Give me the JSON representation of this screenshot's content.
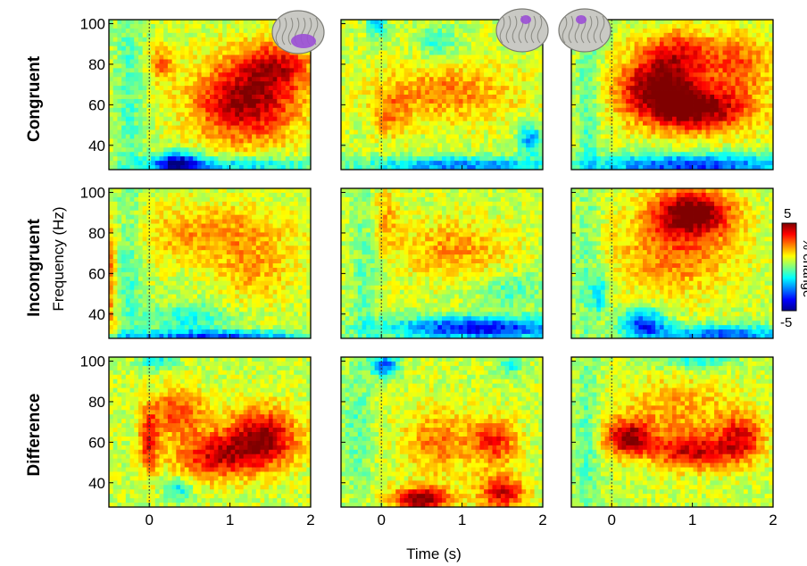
{
  "chart_data": {
    "type": "heatmap",
    "title": "",
    "xlabel": "Time (s)",
    "ylabel": "Frequency (Hz)",
    "xlim": [
      -0.5,
      2.0
    ],
    "ylim": [
      28,
      102
    ],
    "x_ticks": [
      "0",
      "1",
      "2"
    ],
    "y_ticks": [
      "40",
      "60",
      "80",
      "100"
    ],
    "rows": [
      "Congruent",
      "Incongruent",
      "Difference"
    ],
    "columns": 3,
    "brain_icons": [
      "brain-lateral-highlight",
      "brain-dorsal-highlight",
      "brain-frontal-highlight"
    ],
    "colorbar": {
      "label": "% change",
      "min_label": "-5",
      "max_label": "5",
      "range": [
        -5,
        5
      ],
      "colormap": "jet"
    },
    "panels": [
      {
        "row": "Congruent",
        "col": 1,
        "blobs": [
          {
            "t": 1.2,
            "f": 62,
            "st": 0.45,
            "sf": 14,
            "a": 4.2
          },
          {
            "t": 1.6,
            "f": 80,
            "st": 0.3,
            "sf": 8,
            "a": 2.5
          },
          {
            "t": 0.15,
            "f": 80,
            "st": 0.1,
            "sf": 6,
            "a": 2.0
          },
          {
            "t": 0.35,
            "f": 31,
            "st": 0.2,
            "sf": 4,
            "a": -4.5
          },
          {
            "t": 1.0,
            "f": 30,
            "st": 0.8,
            "sf": 3,
            "a": -2.5
          },
          {
            "t": -0.25,
            "f": 65,
            "st": 0.12,
            "sf": 40,
            "a": -1.2
          }
        ]
      },
      {
        "row": "Congruent",
        "col": 2,
        "blobs": [
          {
            "t": 0.8,
            "f": 66,
            "st": 0.6,
            "sf": 10,
            "a": 1.8
          },
          {
            "t": 0.1,
            "f": 55,
            "st": 0.15,
            "sf": 8,
            "a": 1.5
          },
          {
            "t": 1.0,
            "f": 30,
            "st": 0.9,
            "sf": 3,
            "a": -3.2
          },
          {
            "t": 1.85,
            "f": 43,
            "st": 0.1,
            "sf": 5,
            "a": -3.0
          },
          {
            "t": 0.7,
            "f": 90,
            "st": 0.15,
            "sf": 6,
            "a": -1.5
          },
          {
            "t": -0.05,
            "f": 100,
            "st": 0.08,
            "sf": 4,
            "a": -2.5
          }
        ]
      },
      {
        "row": "Congruent",
        "col": 3,
        "blobs": [
          {
            "t": 1.0,
            "f": 58,
            "st": 0.5,
            "sf": 8,
            "a": 4.8
          },
          {
            "t": 0.55,
            "f": 70,
            "st": 0.35,
            "sf": 8,
            "a": 3.5
          },
          {
            "t": 0.8,
            "f": 85,
            "st": 0.35,
            "sf": 8,
            "a": 3.0
          },
          {
            "t": 1.6,
            "f": 80,
            "st": 0.3,
            "sf": 10,
            "a": 2.0
          },
          {
            "t": 1.0,
            "f": 30,
            "st": 0.9,
            "sf": 4,
            "a": -4.0
          },
          {
            "t": -0.3,
            "f": 60,
            "st": 0.1,
            "sf": 40,
            "a": -1.2
          }
        ]
      },
      {
        "row": "Incongruent",
        "col": 1,
        "blobs": [
          {
            "t": 0.8,
            "f": 80,
            "st": 0.7,
            "sf": 10,
            "a": 1.6
          },
          {
            "t": 1.3,
            "f": 60,
            "st": 0.35,
            "sf": 10,
            "a": 1.2
          },
          {
            "t": 0.5,
            "f": 38,
            "st": 0.35,
            "sf": 5,
            "a": -1.8
          },
          {
            "t": 0.8,
            "f": 29,
            "st": 0.9,
            "sf": 2,
            "a": -3.5
          },
          {
            "t": -0.25,
            "f": 65,
            "st": 0.12,
            "sf": 40,
            "a": -1.2
          },
          {
            "t": -0.48,
            "f": 55,
            "st": 0.05,
            "sf": 20,
            "a": 2.0
          }
        ]
      },
      {
        "row": "Incongruent",
        "col": 2,
        "blobs": [
          {
            "t": 0.9,
            "f": 72,
            "st": 0.5,
            "sf": 10,
            "a": 1.5
          },
          {
            "t": 0.05,
            "f": 88,
            "st": 0.12,
            "sf": 10,
            "a": 1.4
          },
          {
            "t": 1.2,
            "f": 33,
            "st": 0.8,
            "sf": 4,
            "a": -4.5
          },
          {
            "t": 1.6,
            "f": 52,
            "st": 0.3,
            "sf": 6,
            "a": -1.2
          },
          {
            "t": -0.2,
            "f": 65,
            "st": 0.12,
            "sf": 40,
            "a": -1.0
          }
        ]
      },
      {
        "row": "Incongruent",
        "col": 3,
        "blobs": [
          {
            "t": 1.0,
            "f": 90,
            "st": 0.35,
            "sf": 8,
            "a": 4.5
          },
          {
            "t": 0.8,
            "f": 70,
            "st": 0.5,
            "sf": 14,
            "a": 2.0
          },
          {
            "t": 0.4,
            "f": 35,
            "st": 0.2,
            "sf": 5,
            "a": -4.0
          },
          {
            "t": 1.4,
            "f": 30,
            "st": 0.6,
            "sf": 3,
            "a": -3.5
          },
          {
            "t": -0.15,
            "f": 50,
            "st": 0.06,
            "sf": 6,
            "a": -2.5
          },
          {
            "t": -0.3,
            "f": 60,
            "st": 0.1,
            "sf": 40,
            "a": -1.0
          }
        ]
      },
      {
        "row": "Difference",
        "col": 1,
        "blobs": [
          {
            "t": 1.4,
            "f": 62,
            "st": 0.3,
            "sf": 10,
            "a": 4.2
          },
          {
            "t": 0.8,
            "f": 53,
            "st": 0.35,
            "sf": 8,
            "a": 3.2
          },
          {
            "t": 0.35,
            "f": 75,
            "st": 0.25,
            "sf": 8,
            "a": 2.5
          },
          {
            "t": 0.0,
            "f": 60,
            "st": 0.08,
            "sf": 10,
            "a": 3.0
          },
          {
            "t": 0.35,
            "f": 37,
            "st": 0.12,
            "sf": 4,
            "a": -2.0
          },
          {
            "t": 0.1,
            "f": 100,
            "st": 0.15,
            "sf": 3,
            "a": -2.0
          }
        ]
      },
      {
        "row": "Difference",
        "col": 2,
        "blobs": [
          {
            "t": 0.5,
            "f": 32,
            "st": 0.25,
            "sf": 4,
            "a": 4.5
          },
          {
            "t": 1.5,
            "f": 35,
            "st": 0.2,
            "sf": 6,
            "a": 3.5
          },
          {
            "t": 1.4,
            "f": 60,
            "st": 0.2,
            "sf": 8,
            "a": 2.8
          },
          {
            "t": 0.7,
            "f": 60,
            "st": 0.3,
            "sf": 12,
            "a": 1.8
          },
          {
            "t": 0.05,
            "f": 98,
            "st": 0.12,
            "sf": 4,
            "a": -3.5
          },
          {
            "t": 1.6,
            "f": 98,
            "st": 0.1,
            "sf": 3,
            "a": -2.0
          },
          {
            "t": -0.3,
            "f": 70,
            "st": 0.12,
            "sf": 30,
            "a": -1.0
          }
        ]
      },
      {
        "row": "Difference",
        "col": 3,
        "blobs": [
          {
            "t": 0.2,
            "f": 62,
            "st": 0.2,
            "sf": 6,
            "a": 4.0
          },
          {
            "t": 1.0,
            "f": 55,
            "st": 0.35,
            "sf": 6,
            "a": 3.2
          },
          {
            "t": 1.6,
            "f": 62,
            "st": 0.2,
            "sf": 8,
            "a": 3.0
          },
          {
            "t": 0.8,
            "f": 75,
            "st": 0.5,
            "sf": 12,
            "a": 1.5
          },
          {
            "t": -0.3,
            "f": 60,
            "st": 0.1,
            "sf": 40,
            "a": -1.2
          },
          {
            "t": 1.0,
            "f": 100,
            "st": 0.4,
            "sf": 3,
            "a": -1.5
          }
        ]
      }
    ]
  }
}
